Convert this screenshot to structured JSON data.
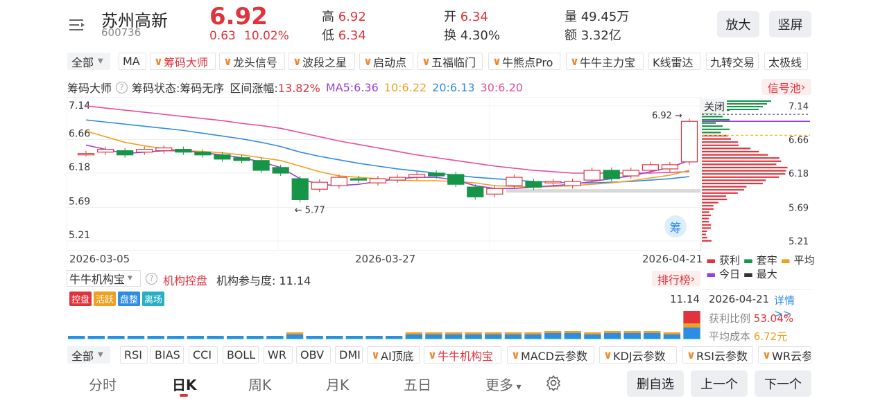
{
  "header": {
    "menu_icon": "list-menu-icon",
    "name": "苏州高新",
    "code": "600736",
    "price": "6.92",
    "change": "0.63",
    "change_pct": "10.02%",
    "high_label": "高",
    "high": "6.92",
    "low_label": "低",
    "low": "6.34",
    "open_label": "开",
    "open": "6.34",
    "turnover_label": "换",
    "turnover": "4.30%",
    "volume_label": "量",
    "volume": "49.45万",
    "amount_label": "额",
    "amount": "3.32亿",
    "zoom_btn": "放大",
    "portrait_btn": "竖屏"
  },
  "indicator_tabs": {
    "all": "全部",
    "items": [
      "MA",
      "筹码大师",
      "龙头信号",
      "波段之星",
      "启动点",
      "五福临门",
      "牛熊点Pro",
      "牛牛主力宝",
      "K线雷达",
      "九转交易",
      "太极线"
    ]
  },
  "chip_bar": {
    "title": "筹码大师",
    "state": "筹码状态:筹码无序",
    "range_change": "区间涨幅:13.82%",
    "ma5": "MA5:6.36",
    "ma10": "10:6.22",
    "ma20": "20:6.13",
    "ma30": "30:6.20",
    "signal_pool": "信号池"
  },
  "kchart": {
    "y_ticks": [
      "7.14",
      "6.66",
      "6.18",
      "5.69",
      "5.21"
    ],
    "right_ticks": [
      "7.14",
      "6.66",
      "6.18",
      "5.69",
      "5.21"
    ],
    "high_marker": "6.92",
    "low_marker": "5.77",
    "close_btn": "关闭",
    "chip_btn": "筹",
    "dates": [
      "2026-03-05",
      "2026-03-27",
      "2026-04-21"
    ]
  },
  "chip_legend": {
    "profit": "获利",
    "trapped": "套牢",
    "avg": "平均",
    "today": "今日",
    "max": "最大"
  },
  "inst": {
    "selector": "牛牛机构宝",
    "title": "机构控盘",
    "participation": "机构参与度: 11.14",
    "ranking": "排行榜",
    "tags": [
      "控盘",
      "活跃",
      "盘整",
      "离场"
    ],
    "value": "11.14"
  },
  "chip_info": {
    "date": "2026-04-21",
    "detail": "详情>>",
    "profit_ratio_label": "获利比例",
    "profit_ratio": "53.04%",
    "avg_cost_label": "平均成本",
    "avg_cost": "6.72元"
  },
  "sub_tabs": {
    "all": "全部",
    "items": [
      "RSI",
      "BIAS",
      "CCI",
      "BOLL",
      "WR",
      "OBV",
      "DMI",
      "AI顶底",
      "牛牛机构宝",
      "MACD云参数",
      "KDJ云参数",
      "RSI云参数",
      "WR云参"
    ]
  },
  "bottom": {
    "tabs": [
      "分时",
      "日K",
      "周K",
      "月K",
      "五日",
      "更多"
    ],
    "settings_icon": "gear-icon",
    "delete_btn": "删自选",
    "prev_btn": "上一个",
    "next_btn": "下一个"
  },
  "colors": {
    "up": "#e0333b",
    "down": "#169447",
    "ma5": "#9b3fd6",
    "ma10": "#f0a020",
    "ma20": "#2e8be6",
    "ma30": "#e84ba0"
  },
  "chart_data": {
    "type": "candlestick",
    "ylim": [
      5.21,
      7.14
    ],
    "candles": [
      {
        "o": 6.46,
        "c": 6.46
      },
      {
        "o": 6.48,
        "c": 6.52
      },
      {
        "o": 6.5,
        "c": 6.44
      },
      {
        "o": 6.48,
        "c": 6.52
      },
      {
        "o": 6.5,
        "c": 6.54
      },
      {
        "o": 6.52,
        "c": 6.48
      },
      {
        "o": 6.48,
        "c": 6.44
      },
      {
        "o": 6.44,
        "c": 6.38
      },
      {
        "o": 6.4,
        "c": 6.36
      },
      {
        "o": 6.36,
        "c": 6.22
      },
      {
        "o": 6.26,
        "c": 6.18
      },
      {
        "o": 6.1,
        "c": 5.8
      },
      {
        "o": 5.95,
        "c": 6.05
      },
      {
        "o": 6.0,
        "c": 6.12
      },
      {
        "o": 6.1,
        "c": 6.08
      },
      {
        "o": 6.04,
        "c": 6.1
      },
      {
        "o": 6.08,
        "c": 6.12
      },
      {
        "o": 6.12,
        "c": 6.16
      },
      {
        "o": 6.18,
        "c": 6.14
      },
      {
        "o": 6.16,
        "c": 6.02
      },
      {
        "o": 5.98,
        "c": 5.84
      },
      {
        "o": 5.88,
        "c": 5.96
      },
      {
        "o": 6.0,
        "c": 6.12
      },
      {
        "o": 6.06,
        "c": 5.98
      },
      {
        "o": 6.04,
        "c": 6.06
      },
      {
        "o": 6.0,
        "c": 6.06
      },
      {
        "o": 6.08,
        "c": 6.22
      },
      {
        "o": 6.22,
        "c": 6.1
      },
      {
        "o": 6.14,
        "c": 6.22
      },
      {
        "o": 6.22,
        "c": 6.3
      },
      {
        "o": 6.24,
        "c": 6.3
      },
      {
        "o": 6.34,
        "c": 6.92
      }
    ],
    "ma5": [
      6.58,
      6.52,
      6.46,
      6.48,
      6.5,
      6.5,
      6.47,
      6.44,
      6.4,
      6.34,
      6.26,
      6.1,
      6.02,
      6.0,
      6.02,
      6.06,
      6.1,
      6.12,
      6.12,
      6.08,
      6.0,
      5.96,
      5.96,
      5.98,
      6.0,
      6.02,
      6.06,
      6.1,
      6.14,
      6.2,
      6.26,
      6.36
    ],
    "ma10": [
      6.78,
      6.7,
      6.62,
      6.57,
      6.53,
      6.5,
      6.49,
      6.47,
      6.44,
      6.4,
      6.36,
      6.28,
      6.2,
      6.14,
      6.12,
      6.1,
      6.08,
      6.07,
      6.07,
      6.06,
      6.04,
      6.0,
      5.99,
      5.98,
      5.99,
      6.0,
      6.02,
      6.04,
      6.07,
      6.11,
      6.15,
      6.22
    ],
    "ma20": [
      6.94,
      6.91,
      6.88,
      6.85,
      6.82,
      6.79,
      6.75,
      6.71,
      6.67,
      6.62,
      6.56,
      6.48,
      6.42,
      6.37,
      6.32,
      6.28,
      6.24,
      6.21,
      6.18,
      6.15,
      6.12,
      6.1,
      6.08,
      6.06,
      6.05,
      6.04,
      6.04,
      6.05,
      6.06,
      6.08,
      6.1,
      6.13
    ],
    "ma30": [
      7.14,
      7.11,
      7.08,
      7.05,
      7.02,
      6.99,
      6.96,
      6.93,
      6.89,
      6.86,
      6.82,
      6.76,
      6.7,
      6.64,
      6.59,
      6.54,
      6.49,
      6.44,
      6.4,
      6.36,
      6.32,
      6.28,
      6.25,
      6.22,
      6.2,
      6.18,
      6.18,
      6.18,
      6.18,
      6.18,
      6.19,
      6.2
    ],
    "inst_bars": [
      1,
      1,
      1,
      1,
      1,
      1,
      1,
      1,
      1,
      1,
      1,
      2,
      1,
      1,
      1,
      1,
      1,
      2,
      2,
      2,
      2,
      2,
      2,
      2,
      3,
      3,
      2,
      3,
      3,
      3,
      2,
      9
    ]
  }
}
